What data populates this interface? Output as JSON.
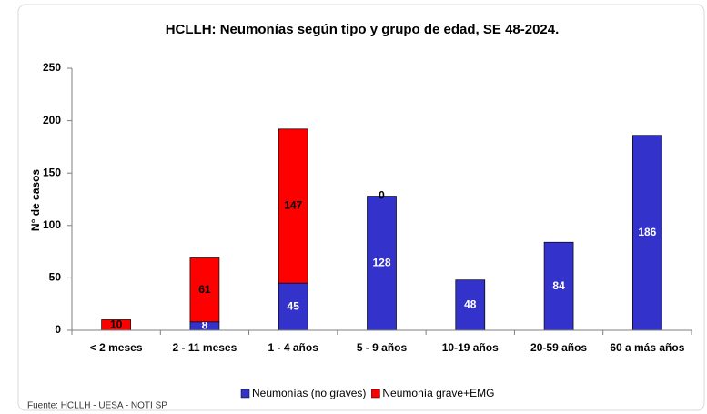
{
  "chart_data": {
    "type": "stacked_bar",
    "title": "HCLLH: Neumonías según tipo y grupo de edad, SE 48-2024.",
    "y_label": "N° de casos",
    "source": "Fuente: HCLLH - UESA - NOTI SP",
    "categories": [
      "< 2 meses",
      "2 - 11 meses",
      "1 - 4 años",
      "5 - 9 años",
      "10-19 años",
      "20-59 años",
      "60 a más años"
    ],
    "series": [
      {
        "name": "Neumonías (no graves)",
        "color": "#3333cc",
        "label_color": "#ffffff",
        "values": [
          null,
          8,
          45,
          128,
          48,
          84,
          186
        ]
      },
      {
        "name": "Neumonía grave+EMG",
        "color": "#ff0000",
        "label_color": "#000000",
        "values": [
          10,
          61,
          147,
          0,
          null,
          null,
          null
        ]
      }
    ],
    "ylim": [
      0,
      250
    ],
    "yticks": [
      0,
      50,
      100,
      150,
      200,
      250
    ],
    "grid": false,
    "legend": "bottom"
  }
}
